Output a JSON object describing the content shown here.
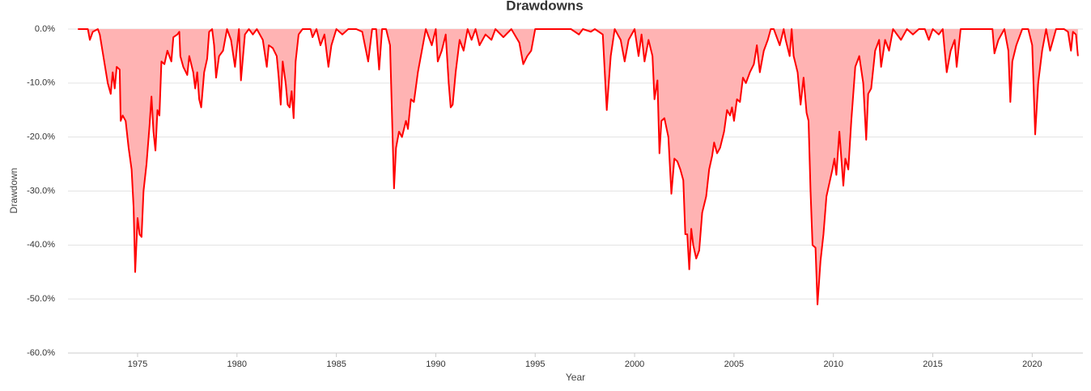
{
  "chart_data": {
    "type": "area",
    "title": "Drawdowns",
    "x_label": "Year",
    "y_label": "Drawdown",
    "color": "#ff0000",
    "fill": "#ffb3b3",
    "grid": true,
    "xlim": [
      1971.5,
      2022.55
    ],
    "ylim": [
      -60,
      0
    ],
    "xticks": [
      1975,
      1980,
      1985,
      1990,
      1995,
      2000,
      2005,
      2010,
      2015,
      2020
    ],
    "yticks": [
      {
        "value": 0,
        "label": "0.0%"
      },
      {
        "value": -10,
        "label": "-10.0%"
      },
      {
        "value": -20,
        "label": "-20.0%"
      },
      {
        "value": -30,
        "label": "-30.0%"
      },
      {
        "value": -40,
        "label": "-40.0%"
      },
      {
        "value": -50,
        "label": "-50.0%"
      },
      {
        "value": -60,
        "label": "-60.0%"
      }
    ],
    "x": [
      1972.0,
      1972.5,
      1972.6,
      1972.75,
      1973.0,
      1973.1,
      1973.3,
      1973.5,
      1973.65,
      1973.75,
      1973.85,
      1973.95,
      1974.1,
      1974.15,
      1974.25,
      1974.4,
      1974.55,
      1974.7,
      1974.8,
      1974.88,
      1975.0,
      1975.1,
      1975.2,
      1975.3,
      1975.45,
      1975.6,
      1975.7,
      1975.8,
      1975.9,
      1976.0,
      1976.1,
      1976.2,
      1976.35,
      1976.5,
      1976.7,
      1976.8,
      1977.0,
      1977.1,
      1977.15,
      1977.3,
      1977.5,
      1977.6,
      1977.8,
      1977.9,
      1978.0,
      1978.1,
      1978.2,
      1978.35,
      1978.5,
      1978.6,
      1978.75,
      1978.85,
      1978.95,
      1979.1,
      1979.3,
      1979.5,
      1979.7,
      1979.9,
      1980.1,
      1980.2,
      1980.4,
      1980.6,
      1980.8,
      1981.0,
      1981.3,
      1981.5,
      1981.6,
      1981.8,
      1982.0,
      1982.1,
      1982.2,
      1982.3,
      1982.45,
      1982.55,
      1982.65,
      1982.75,
      1982.85,
      1982.95,
      1983.1,
      1983.3,
      1983.7,
      1983.8,
      1984.0,
      1984.2,
      1984.4,
      1984.6,
      1984.75,
      1985.0,
      1985.3,
      1985.6,
      1986.0,
      1986.3,
      1986.6,
      1986.8,
      1987.0,
      1987.15,
      1987.3,
      1987.5,
      1987.7,
      1987.9,
      1988.0,
      1988.15,
      1988.3,
      1988.5,
      1988.6,
      1988.75,
      1988.9,
      1989.1,
      1989.3,
      1989.5,
      1989.8,
      1990.0,
      1990.1,
      1990.3,
      1990.5,
      1990.65,
      1990.75,
      1990.85,
      1991.0,
      1991.2,
      1991.4,
      1991.6,
      1991.8,
      1992.0,
      1992.2,
      1992.5,
      1992.8,
      1993.0,
      1993.4,
      1993.8,
      1994.2,
      1994.4,
      1994.6,
      1994.8,
      1995.0,
      1995.5,
      1996.0,
      1996.5,
      1996.8,
      1997.2,
      1997.4,
      1997.8,
      1998.0,
      1998.4,
      1998.6,
      1998.8,
      1999.0,
      1999.3,
      1999.5,
      1999.7,
      2000.0,
      2000.2,
      2000.35,
      2000.5,
      2000.7,
      2000.9,
      2001.0,
      2001.15,
      2001.25,
      2001.35,
      2001.5,
      2001.7,
      2001.85,
      2002.0,
      2002.15,
      2002.3,
      2002.45,
      2002.55,
      2002.65,
      2002.75,
      2002.85,
      2002.95,
      2003.1,
      2003.25,
      2003.4,
      2003.6,
      2003.75,
      2003.9,
      2004.0,
      2004.15,
      2004.3,
      2004.5,
      2004.65,
      2004.8,
      2004.9,
      2005.0,
      2005.15,
      2005.3,
      2005.45,
      2005.6,
      2005.8,
      2006.0,
      2006.15,
      2006.3,
      2006.5,
      2006.7,
      2006.85,
      2007.0,
      2007.3,
      2007.5,
      2007.6,
      2007.8,
      2007.9,
      2008.0,
      2008.2,
      2008.35,
      2008.5,
      2008.65,
      2008.75,
      2008.85,
      2008.95,
      2009.1,
      2009.2,
      2009.35,
      2009.5,
      2009.65,
      2009.8,
      2009.95,
      2010.05,
      2010.15,
      2010.3,
      2010.4,
      2010.5,
      2010.6,
      2010.75,
      2010.9,
      2011.1,
      2011.3,
      2011.5,
      2011.65,
      2011.75,
      2011.9,
      2012.1,
      2012.3,
      2012.4,
      2012.6,
      2012.8,
      2013.0,
      2013.4,
      2013.7,
      2014.0,
      2014.3,
      2014.6,
      2014.8,
      2015.0,
      2015.3,
      2015.5,
      2015.7,
      2015.9,
      2016.1,
      2016.2,
      2016.4,
      2016.8,
      2017.2,
      2017.8,
      2018.0,
      2018.1,
      2018.3,
      2018.6,
      2018.8,
      2018.9,
      2019.0,
      2019.2,
      2019.5,
      2019.8,
      2020.0,
      2020.15,
      2020.3,
      2020.5,
      2020.7,
      2020.9,
      2021.2,
      2021.6,
      2021.8,
      2021.95,
      2022.05,
      2022.2,
      2022.3
    ],
    "values": [
      0,
      0,
      -2,
      -0.5,
      0,
      -1,
      -5.5,
      -10,
      -12,
      -8,
      -11,
      -7,
      -7.5,
      -17,
      -16,
      -17,
      -22,
      -26,
      -33,
      -45,
      -35,
      -38,
      -38.5,
      -30,
      -25,
      -18,
      -12.5,
      -19,
      -22.5,
      -15,
      -16,
      -6,
      -6.5,
      -4,
      -6,
      -1.5,
      -1,
      -0.5,
      -5,
      -7,
      -8.5,
      -5,
      -8,
      -11,
      -8,
      -13,
      -14.5,
      -8,
      -5.5,
      -0.5,
      0,
      -3,
      -9,
      -5,
      -4,
      0,
      -2,
      -7,
      0,
      -9.5,
      -1,
      0,
      -1,
      0,
      -2,
      -7,
      -3,
      -3.5,
      -5,
      -9,
      -14,
      -6,
      -10,
      -14,
      -14.5,
      -11.5,
      -16.5,
      -6,
      -1,
      0,
      0,
      -1.5,
      0,
      -3,
      -1,
      -7,
      -3,
      0,
      -1,
      0,
      0,
      -0.5,
      -6,
      0,
      0,
      -7.5,
      0,
      0,
      -3,
      -29.5,
      -22,
      -19,
      -20,
      -17,
      -18.5,
      -13,
      -13.5,
      -8,
      -4,
      0,
      -3,
      0,
      -6,
      -4,
      -1,
      -10,
      -14.5,
      -14,
      -8,
      -2,
      -4,
      0,
      -2,
      0,
      -3,
      -1,
      -2,
      0,
      -1.5,
      0,
      -2.5,
      -6.5,
      -5,
      -4,
      0,
      0,
      0,
      0,
      0,
      -1,
      0,
      -0.5,
      0,
      -1,
      -15,
      -5,
      0,
      -2,
      -6,
      -2,
      0,
      -5,
      -1,
      -6,
      -2,
      -5,
      -13,
      -9.5,
      -23,
      -17,
      -16.5,
      -20,
      -30.5,
      -24,
      -24.5,
      -26,
      -28,
      -38,
      -38,
      -44.5,
      -37,
      -40,
      -42.5,
      -41,
      -34,
      -31,
      -26,
      -23.5,
      -21,
      -23,
      -22,
      -19,
      -15,
      -16,
      -14.5,
      -17,
      -13,
      -13.5,
      -9,
      -10,
      -8,
      -6.5,
      -3,
      -8,
      -4,
      -2,
      0,
      0,
      -3,
      0,
      -2,
      -5,
      0,
      -5,
      -8,
      -14,
      -9,
      -15.5,
      -17,
      -30,
      -40,
      -40.5,
      -51,
      -43,
      -38,
      -31,
      -28.5,
      -26,
      -24,
      -27,
      -19,
      -24,
      -29,
      -24,
      -26,
      -17,
      -7,
      -5,
      -10,
      -20.5,
      -12,
      -11,
      -4,
      -2,
      -7,
      -2,
      -4,
      0,
      -2,
      0,
      -1,
      0,
      0,
      -2,
      0,
      -1,
      0,
      -8,
      -4,
      -2,
      -7,
      0,
      0,
      0,
      0,
      0,
      -4.5,
      -2,
      0,
      -4,
      -13.5,
      -6,
      -3,
      0,
      0,
      -3,
      -19.5,
      -10,
      -4,
      0,
      -4,
      0,
      0,
      -0.5,
      -4,
      -0.5,
      -1,
      -5
    ]
  }
}
